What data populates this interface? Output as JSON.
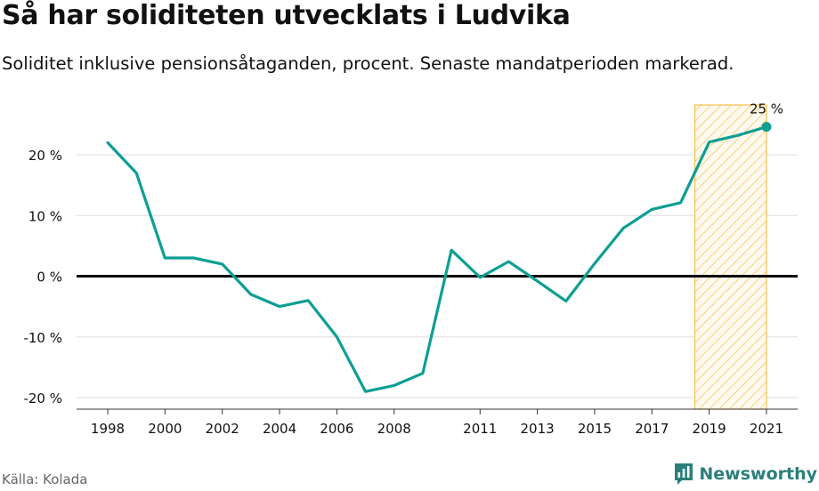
{
  "title": "Så har soliditeten utvecklats i Ludvika",
  "subtitle": "Soliditet inklusive pensionsåtaganden, procent. Senaste mandatperioden markerad.",
  "source": "Källa: Kolada",
  "brand": "Newsworthy",
  "colors": {
    "line": "#0d9e94",
    "highlight": "#f5c04a",
    "zero_line": "#000000",
    "grid": "#dddddd"
  },
  "chart_data": {
    "type": "line",
    "x": [
      1998,
      1999,
      2000,
      2001,
      2002,
      2003,
      2004,
      2005,
      2006,
      2007,
      2008,
      2009,
      2010,
      2011,
      2012,
      2013,
      2014,
      2015,
      2016,
      2017,
      2018,
      2019,
      2020,
      2021
    ],
    "series": [
      {
        "values": [
          22,
          17,
          3,
          3,
          2,
          -3,
          -5,
          -4,
          -10,
          -19,
          -18,
          -16,
          4.3,
          -0.2,
          2.4,
          -0.8,
          -4.1,
          2.1,
          7.9,
          11,
          12.1,
          22.1,
          23.2,
          24.6
        ]
      }
    ],
    "x_ticks": [
      1998,
      2000,
      2002,
      2004,
      2006,
      2008,
      2011,
      2013,
      2015,
      2017,
      2019,
      2021
    ],
    "y_ticks": [
      20,
      10,
      0,
      -10,
      -20
    ],
    "y_tick_labels": [
      "20 %",
      "10 %",
      "0 %",
      "-10 %",
      "-20 %"
    ],
    "ylim": [
      -22,
      29
    ],
    "xlim": [
      1997,
      2022
    ],
    "highlight_range": [
      2018.5,
      2021
    ],
    "end_label": "25 %",
    "grid": true,
    "legend": "none"
  }
}
